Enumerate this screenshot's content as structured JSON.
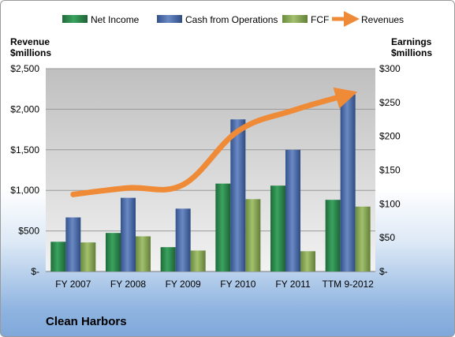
{
  "company": "Clean Harbors",
  "colors": {
    "net_income": "#2e8b4f",
    "cash_from_operations": "#4f6fae",
    "fcf": "#8aa858",
    "revenues": "#ef8a37"
  },
  "chart_data": {
    "type": "bar",
    "categories": [
      "FY 2007",
      "FY 2008",
      "FY 2009",
      "FY 2010",
      "FY 2011",
      "TTM 9-2012"
    ],
    "left_axis": {
      "label_line1": "Revenue",
      "label_line2": "$millions",
      "ylim": [
        0,
        2500
      ],
      "ticks": [
        0,
        500,
        1000,
        1500,
        2000,
        2500
      ],
      "tick_labels": [
        "$-",
        "$500",
        "$1,000",
        "$1,500",
        "$2,000",
        "$2,500"
      ]
    },
    "right_axis": {
      "label_line1": "Earnings",
      "label_line2": "$millions",
      "ylim": [
        0,
        300
      ],
      "ticks": [
        0,
        50,
        100,
        150,
        200,
        250,
        300
      ],
      "tick_labels": [
        "$-",
        "$50",
        "$100",
        "$150",
        "$200",
        "$250",
        "$300"
      ]
    },
    "series": [
      {
        "name": "Net Income",
        "type": "bar",
        "axis": "right",
        "values": [
          44,
          57,
          36,
          130,
          127,
          106
        ]
      },
      {
        "name": "Cash from Operations",
        "type": "bar",
        "axis": "right",
        "values": [
          80,
          109,
          93,
          225,
          180,
          262
        ]
      },
      {
        "name": "FCF",
        "type": "bar",
        "axis": "right",
        "values": [
          43,
          52,
          31,
          107,
          30,
          96
        ]
      },
      {
        "name": "Revenues",
        "type": "line",
        "axis": "left",
        "values": [
          950,
          1030,
          1070,
          1730,
          1985,
          2180
        ]
      }
    ],
    "legend_position": "top",
    "grid": true
  }
}
